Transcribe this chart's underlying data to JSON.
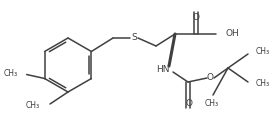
{
  "bg_color": "#ffffff",
  "line_color": "#404040",
  "lw": 1.1,
  "figsize": [
    2.77,
    1.37
  ],
  "dpi": 100,
  "xlim": [
    0,
    277
  ],
  "ylim": [
    0,
    137
  ]
}
